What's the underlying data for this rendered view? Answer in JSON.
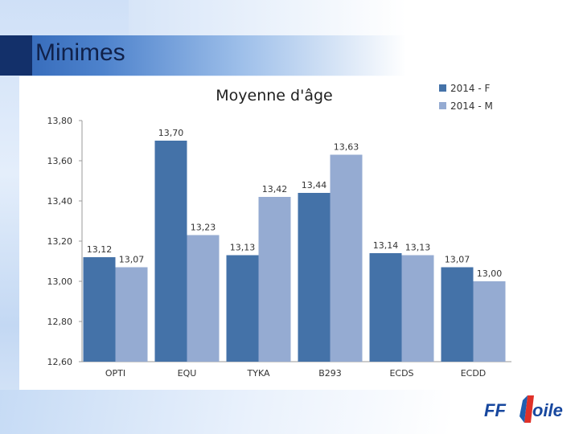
{
  "slide": {
    "title": "Minimes"
  },
  "logo": {
    "text": "FFVoile"
  },
  "colors": {
    "series_f": "#4472a8",
    "series_m": "#95abd2",
    "grid": "#c8c8c8",
    "title_band": "#2f64b5"
  },
  "chart_data": {
    "type": "bar",
    "title": "Moyenne d'âge",
    "categories": [
      "OPTI",
      "EQU",
      "TYKA",
      "B293",
      "ECDS",
      "ECDD"
    ],
    "series": [
      {
        "name": "2014 - F",
        "values": [
          13.12,
          13.7,
          13.13,
          13.44,
          13.14,
          13.07
        ],
        "labels": [
          "13,12",
          "13,70",
          "13,13",
          "13,44",
          "13,14",
          "13,07"
        ]
      },
      {
        "name": "2014 - M",
        "values": [
          13.07,
          13.23,
          13.42,
          13.63,
          13.13,
          13.0
        ],
        "labels": [
          "13,07",
          "13,23",
          "13,42",
          "13,63",
          "13,13",
          "13,00"
        ]
      }
    ],
    "ylim": [
      12.6,
      13.8
    ],
    "yticks": [
      "12,60",
      "12,80",
      "13,00",
      "13,20",
      "13,40",
      "13,60",
      "13,80"
    ],
    "xlabel": "",
    "ylabel": "",
    "legend": "top-right",
    "grid": false
  }
}
